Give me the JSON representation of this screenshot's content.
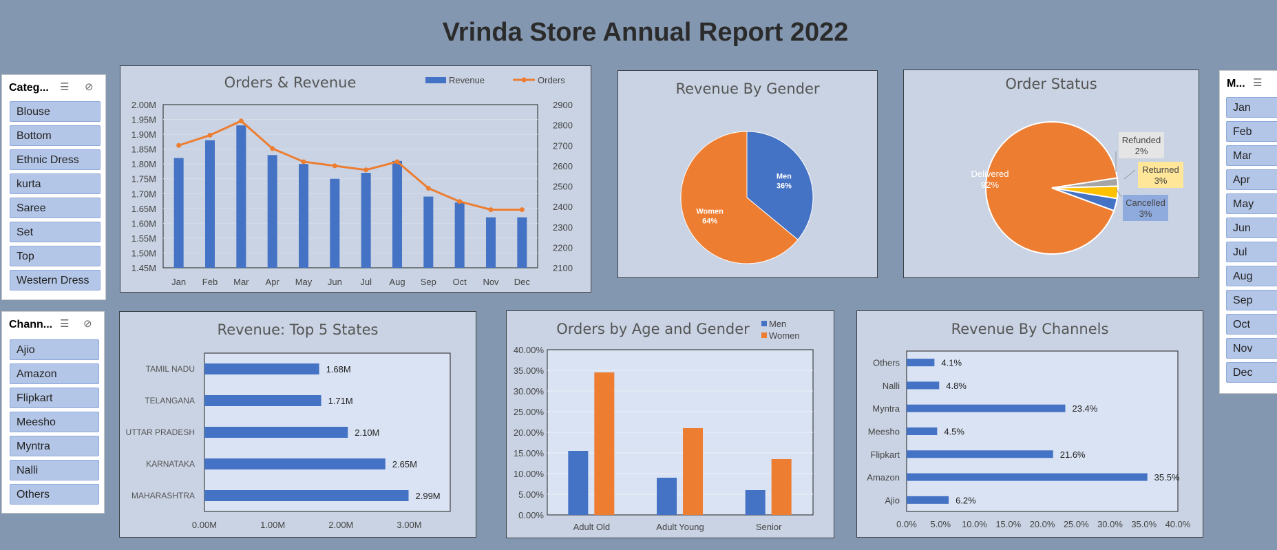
{
  "report_title": "Vrinda Store Annual Report 2022",
  "colors": {
    "blue": "#4472c4",
    "orange": "#ed7d31",
    "gray": "#a5a5a5",
    "gold": "#ffc000",
    "background": "#8497b0",
    "panel": "#c9d3e3"
  },
  "category_slicer": {
    "title": "Categ...",
    "items": [
      "Blouse",
      "Bottom",
      "Ethnic Dress",
      "kurta",
      "Saree",
      "Set",
      "Top",
      "Western Dress"
    ]
  },
  "channel_slicer": {
    "title": "Chann...",
    "items": [
      "Ajio",
      "Amazon",
      "Flipkart",
      "Meesho",
      "Myntra",
      "Nalli",
      "Others"
    ]
  },
  "month_slicer": {
    "title": "M...",
    "items": [
      "Jan",
      "Feb",
      "Mar",
      "Apr",
      "May",
      "Jun",
      "Jul",
      "Aug",
      "Sep",
      "Oct",
      "Nov",
      "Dec"
    ]
  },
  "chart_data": [
    {
      "id": "orders_revenue",
      "type": "bar",
      "title": "Orders & Revenue",
      "categories": [
        "Jan",
        "Feb",
        "Mar",
        "Apr",
        "May",
        "Jun",
        "Jul",
        "Aug",
        "Sep",
        "Oct",
        "Nov",
        "Dec"
      ],
      "series": [
        {
          "name": "Revenue",
          "type": "bar",
          "axis": "left",
          "values": [
            1.82,
            1.88,
            1.93,
            1.83,
            1.8,
            1.75,
            1.77,
            1.81,
            1.69,
            1.67,
            1.62,
            1.62
          ]
        },
        {
          "name": "Orders",
          "type": "line",
          "axis": "right",
          "values": [
            2700,
            2750,
            2820,
            2685,
            2620,
            2600,
            2580,
            2620,
            2490,
            2425,
            2385,
            2385
          ]
        }
      ],
      "ylim": [
        1.45,
        2.0
      ],
      "yticks": [
        "2.00M",
        "1.95M",
        "1.90M",
        "1.85M",
        "1.80M",
        "1.75M",
        "1.70M",
        "1.65M",
        "1.60M",
        "1.55M",
        "1.50M",
        "1.45M"
      ],
      "y2lim": [
        2100,
        2900
      ],
      "y2ticks": [
        "2900",
        "2800",
        "2700",
        "2600",
        "2500",
        "2400",
        "2300",
        "2200",
        "2100"
      ],
      "legend": "top-right"
    },
    {
      "id": "revenue_gender",
      "type": "pie",
      "title": "Revenue By Gender",
      "slices": [
        {
          "name": "Men",
          "value": 36,
          "label": "36%"
        },
        {
          "name": "Women",
          "value": 64,
          "label": "64%"
        }
      ]
    },
    {
      "id": "order_status",
      "type": "pie",
      "title": "Order Status",
      "slices": [
        {
          "name": "Delivered",
          "value": 92,
          "label": "92%"
        },
        {
          "name": "Refunded",
          "value": 2,
          "label": "2%"
        },
        {
          "name": "Returned",
          "value": 3,
          "label": "3%"
        },
        {
          "name": "Cancelled",
          "value": 3,
          "label": "3%"
        }
      ]
    },
    {
      "id": "top_states",
      "type": "bar",
      "orientation": "horizontal",
      "title": "Revenue: Top 5 States",
      "categories": [
        "TAMIL NADU",
        "TELANGANA",
        "UTTAR PRADESH",
        "KARNATAKA",
        "MAHARASHTRA"
      ],
      "values": [
        1.68,
        1.71,
        2.1,
        2.65,
        2.99
      ],
      "labels": [
        "1.68M",
        "1.71M",
        "2.10M",
        "2.65M",
        "2.99M"
      ],
      "xlim": [
        0,
        3.6
      ],
      "xticks": [
        "0.00M",
        "1.00M",
        "2.00M",
        "3.00M"
      ]
    },
    {
      "id": "age_gender",
      "type": "bar",
      "title": "Orders by Age and Gender",
      "categories": [
        "Adult Old",
        "Adult Young",
        "Senior"
      ],
      "series": [
        {
          "name": "Men",
          "values": [
            15.5,
            9.0,
            6.0
          ]
        },
        {
          "name": "Women",
          "values": [
            34.5,
            21.0,
            13.5
          ]
        }
      ],
      "ylim": [
        0,
        40
      ],
      "yticks": [
        "40.00%",
        "35.00%",
        "30.00%",
        "25.00%",
        "20.00%",
        "15.00%",
        "10.00%",
        "5.00%",
        "0.00%"
      ],
      "legend": "top-right"
    },
    {
      "id": "channels",
      "type": "bar",
      "orientation": "horizontal",
      "title": "Revenue By Channels",
      "categories": [
        "Others",
        "Nalli",
        "Myntra",
        "Meesho",
        "Flipkart",
        "Amazon",
        "Ajio"
      ],
      "values": [
        4.1,
        4.8,
        23.4,
        4.5,
        21.6,
        35.5,
        6.2
      ],
      "labels": [
        "4.1%",
        "4.8%",
        "23.4%",
        "4.5%",
        "21.6%",
        "35.5%",
        "6.2%"
      ],
      "xlim": [
        0,
        40
      ],
      "xticks": [
        "0.0%",
        "5.0%",
        "10.0%",
        "15.0%",
        "20.0%",
        "25.0%",
        "30.0%",
        "35.0%",
        "40.0%"
      ]
    }
  ]
}
